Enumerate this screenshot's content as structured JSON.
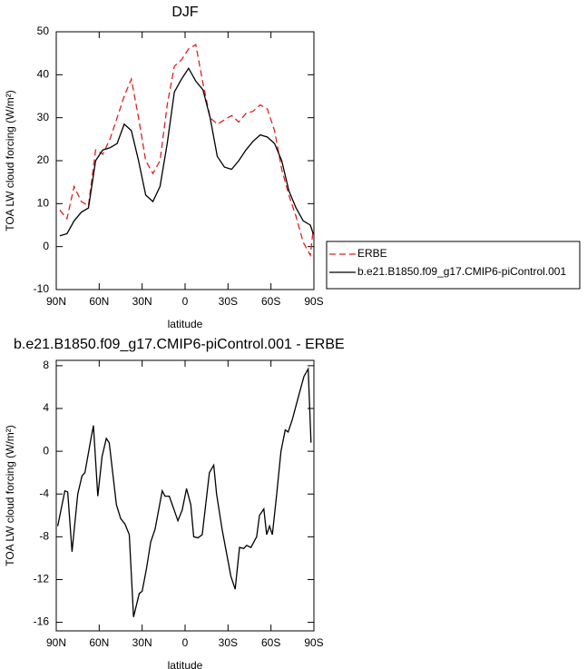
{
  "chart_data": [
    {
      "type": "line",
      "title": "DJF",
      "xlabel": "latitude",
      "ylabel": "TOA LW cloud forcing (W/m²)",
      "x": [
        87.5,
        82.5,
        77.5,
        72.5,
        67.5,
        62.5,
        57.5,
        52.5,
        47.5,
        42.5,
        37.5,
        32.5,
        27.5,
        22.5,
        17.5,
        12.5,
        7.5,
        2.5,
        -2.5,
        -7.5,
        -12.5,
        -17.5,
        -22.5,
        -27.5,
        -32.5,
        -37.5,
        -42.5,
        -47.5,
        -52.5,
        -57.5,
        -62.5,
        -67.5,
        -72.5,
        -77.5,
        -82.5,
        -87.5,
        -89.5
      ],
      "series": [
        {
          "name": "ERBE",
          "color": "#e0201f",
          "linestyle": "dashed",
          "values": [
            8.5,
            6.5,
            14,
            10.5,
            9.5,
            22.5,
            21.5,
            25,
            30,
            35,
            39,
            30,
            20,
            17,
            20,
            33,
            42,
            43.5,
            46,
            47,
            38,
            30,
            28.5,
            29.5,
            30.5,
            29,
            31,
            31.5,
            33,
            32,
            27,
            18,
            12,
            7,
            1,
            -2,
            4
          ]
        },
        {
          "name": "b.e21.B1850.f09_g17.CMIP6-piControl.001",
          "color": "#000000",
          "linestyle": "solid",
          "values": [
            2.5,
            3,
            6,
            8,
            9,
            20,
            22.5,
            23,
            24,
            28.5,
            27,
            20,
            12,
            10.5,
            14,
            24,
            36,
            39,
            41.5,
            38.5,
            36.5,
            30,
            21,
            18.5,
            18,
            20,
            22.5,
            24.5,
            26,
            25.5,
            24,
            20,
            13,
            9,
            6,
            5,
            3
          ]
        }
      ],
      "xlim": [
        90,
        -90
      ],
      "xticks": [
        {
          "value": 90,
          "label": "90N"
        },
        {
          "value": 60,
          "label": "60N"
        },
        {
          "value": 30,
          "label": "30N"
        },
        0,
        {
          "value": -30,
          "label": "30S"
        },
        {
          "value": -60,
          "label": "60S"
        },
        {
          "value": -90,
          "label": "90S"
        }
      ],
      "ylim": [
        -10,
        50
      ],
      "yticks": [
        -10,
        0,
        10,
        20,
        30,
        40,
        50
      ],
      "legend": "right"
    },
    {
      "type": "line",
      "title": "b.e21.B1850.f09_g17.CMIP6-piControl.001 - ERBE",
      "xlabel": "latitude",
      "ylabel": "TOA LW cloud forcing (W/m²)",
      "x": [
        89,
        84,
        82,
        79,
        75,
        72,
        70,
        66,
        64,
        61,
        58,
        55,
        53,
        48,
        45,
        42,
        39,
        36,
        32,
        30,
        27,
        24,
        21,
        16,
        14,
        11,
        5,
        2,
        -1,
        -4,
        -6,
        -9,
        -12,
        -17,
        -20,
        -22,
        -26,
        -32,
        -35,
        -38,
        -41,
        -43,
        -46,
        -50,
        -52,
        -55,
        -57,
        -59,
        -61,
        -64,
        -67,
        -70,
        -72,
        -75,
        -79,
        -83,
        -86,
        -88
      ],
      "series": [
        {
          "name": "b.e21.B1850.f09_g17.CMIP6-piControl.001 - ERBE",
          "color": "#000000",
          "linestyle": "solid",
          "values": [
            -7,
            -3.7,
            -3.8,
            -9.4,
            -4,
            -2.3,
            -2,
            1,
            2.4,
            -4.2,
            -0.5,
            1.2,
            0.8,
            -5,
            -6.3,
            -6.8,
            -7.8,
            -15.5,
            -13.3,
            -13.1,
            -11,
            -8.5,
            -7.3,
            -3.7,
            -4.2,
            -4.2,
            -6.5,
            -5.5,
            -3.5,
            -5,
            -8,
            -8.1,
            -7.8,
            -2,
            -1.3,
            -4,
            -7.4,
            -11.7,
            -12.9,
            -9,
            -9.1,
            -8.8,
            -9,
            -8,
            -6,
            -5.4,
            -7.8,
            -7,
            -7.8,
            -4,
            0,
            2,
            1.8,
            3,
            5,
            7,
            7.7,
            0.8
          ]
        }
      ],
      "xlim": [
        90,
        -90
      ],
      "xticks": [
        {
          "value": 90,
          "label": "90N"
        },
        {
          "value": 60,
          "label": "60N"
        },
        {
          "value": 30,
          "label": "30N"
        },
        0,
        {
          "value": -30,
          "label": "30S"
        },
        {
          "value": -60,
          "label": "60S"
        },
        {
          "value": -90,
          "label": "90S"
        }
      ],
      "ylim": [
        -16.8,
        8.5
      ],
      "yticks": [
        -16,
        -12,
        -8,
        -4,
        0,
        4,
        8
      ]
    }
  ]
}
